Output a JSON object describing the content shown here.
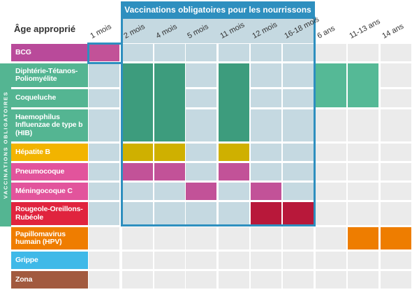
{
  "header": {
    "age_label": "Âge approprié",
    "banner_title": "Vaccinations obligatoires pour les nourrissons",
    "side_label": "VACCINATIONS OBLIGATOIRES"
  },
  "columns": [
    "1 mois",
    "2 mois",
    "4 mois",
    "5 mois",
    "11 mois",
    "12 mois",
    "16-18 mois",
    "6 ans",
    "11-13 ans",
    "14 ans"
  ],
  "rows": [
    {
      "label": "BCG",
      "color": "#b94a9a"
    },
    {
      "label": "Diphtérie-Tétanos-Poliomyélite",
      "color": "#54b592"
    },
    {
      "label": "Coqueluche",
      "color": "#54b592"
    },
    {
      "label": "Haemophilus Influenzae de type b (HIB)",
      "color": "#54b592"
    },
    {
      "label": "Hépatite B",
      "color": "#f2b400"
    },
    {
      "label": "Pneumocoque",
      "color": "#e2549c"
    },
    {
      "label": "Méningocoque C",
      "color": "#e2549c"
    },
    {
      "label": "Rougeole-Oreillons-Rubéole",
      "color": "#e0243e"
    },
    {
      "label": "Papillomavirus humain (HPV)",
      "color": "#ef7d00"
    },
    {
      "label": "Grippe",
      "color": "#3fb9e8"
    },
    {
      "label": "Zona",
      "color": "#a25a3f"
    }
  ],
  "colors": {
    "bcg": "#c25298",
    "dtp_infant": "#3d9c7d",
    "dtp_child": "#55b996",
    "hepb": "#cfb000",
    "pneumo": "#c25298",
    "menc": "#c25298",
    "ror": "#b8183a",
    "hpv": "#ee7d00",
    "border": "#2e8fbf",
    "zone": "#c5d9e1",
    "empty": "#ebebeb"
  }
}
